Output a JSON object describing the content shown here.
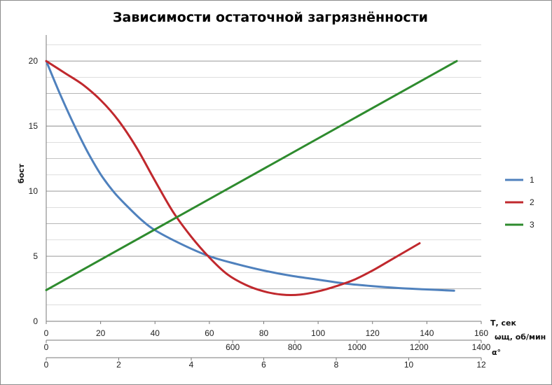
{
  "chart_data": {
    "type": "line",
    "title": "Зависимости остаточной загрязнённости",
    "ylabel": "бост",
    "ylim": [
      0,
      22
    ],
    "yticks": [
      0,
      5,
      10,
      15,
      20
    ],
    "grid": true,
    "legend_position": "right",
    "x_axes": [
      {
        "label": "Т, сек",
        "ticks": [
          0,
          20,
          40,
          60,
          80,
          100,
          120,
          140,
          160
        ],
        "range": [
          0,
          160
        ]
      },
      {
        "label": "ωщ, об/мин",
        "ticks": [
          0,
          600,
          800,
          1000,
          1200,
          1400
        ],
        "range": [
          0,
          1400
        ]
      },
      {
        "label": "α°",
        "ticks": [
          0,
          2,
          4,
          6,
          8,
          10,
          12
        ],
        "range": [
          0,
          12
        ]
      }
    ],
    "series": [
      {
        "name": "1",
        "color": "#4f81bd",
        "axis": "Т, сек",
        "x": [
          0,
          5,
          10,
          15,
          20,
          25,
          30,
          35,
          40,
          50,
          60,
          70,
          80,
          90,
          100,
          110,
          120,
          130,
          140,
          150
        ],
        "y": [
          20,
          17.5,
          15.2,
          13.1,
          11.3,
          9.9,
          8.8,
          7.8,
          7.0,
          5.9,
          5.0,
          4.4,
          3.9,
          3.5,
          3.2,
          2.9,
          2.7,
          2.55,
          2.45,
          2.35
        ]
      },
      {
        "name": "2",
        "color": "#c0282d",
        "axis": "α°",
        "x": [
          0,
          0.5,
          1,
          1.5,
          2,
          2.5,
          3,
          3.5,
          4,
          4.5,
          5,
          5.5,
          6,
          6.5,
          7,
          7.5,
          8,
          8.5,
          9,
          9.5,
          10.3
        ],
        "y": [
          20,
          19.1,
          18.2,
          17.0,
          15.4,
          13.3,
          10.8,
          8.4,
          6.5,
          4.9,
          3.6,
          2.8,
          2.3,
          2.05,
          2.05,
          2.3,
          2.7,
          3.2,
          3.9,
          4.7,
          6.0
        ]
      },
      {
        "name": "3",
        "color": "#2e8b2e",
        "axis": "Т, сек",
        "x": [
          0,
          151
        ],
        "y": [
          2.4,
          20
        ]
      }
    ]
  }
}
